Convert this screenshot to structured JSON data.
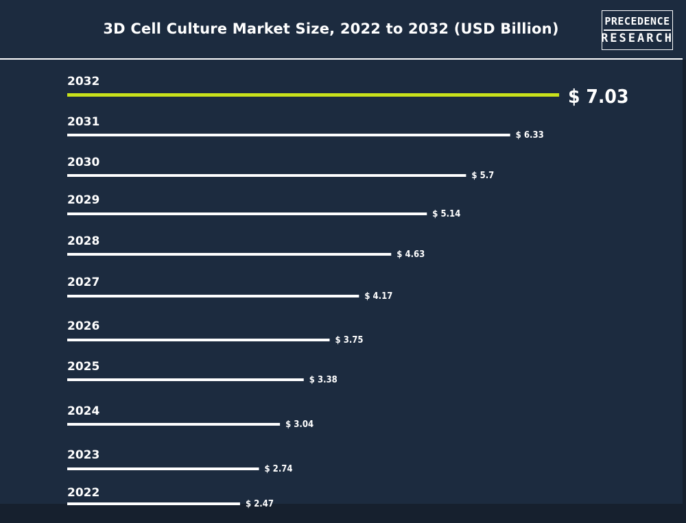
{
  "title": "3D Cell Culture Market Size, 2022 to 2032 (USD Billion)",
  "logo": {
    "line1": "PRECEDENCE",
    "line2": "RESEARCH"
  },
  "colors": {
    "background": "#1c2b3f",
    "bar": "#ffffff",
    "highlight": "#c9e21b",
    "text": "#ffffff"
  },
  "chart_data": {
    "type": "bar",
    "orientation": "horizontal",
    "title": "3D Cell Culture Market Size, 2022 to 2032 (USD Billion)",
    "xlabel": "",
    "ylabel": "",
    "categories": [
      "2032",
      "2031",
      "2030",
      "2029",
      "2028",
      "2027",
      "2026",
      "2025",
      "2024",
      "2023",
      "2022"
    ],
    "values": [
      7.03,
      6.33,
      5.7,
      5.14,
      4.63,
      4.17,
      3.75,
      3.38,
      3.04,
      2.74,
      2.47
    ],
    "value_labels": [
      "$ 7.03",
      "$ 6.33",
      "$ 5.7",
      "$ 5.14",
      "$ 4.63",
      "$ 4.17",
      "$ 3.75",
      "$ 3.38",
      "$ 3.04",
      "$ 2.74",
      "$ 2.47"
    ],
    "highlight_category": "2032",
    "grid": false,
    "legend": "none"
  }
}
